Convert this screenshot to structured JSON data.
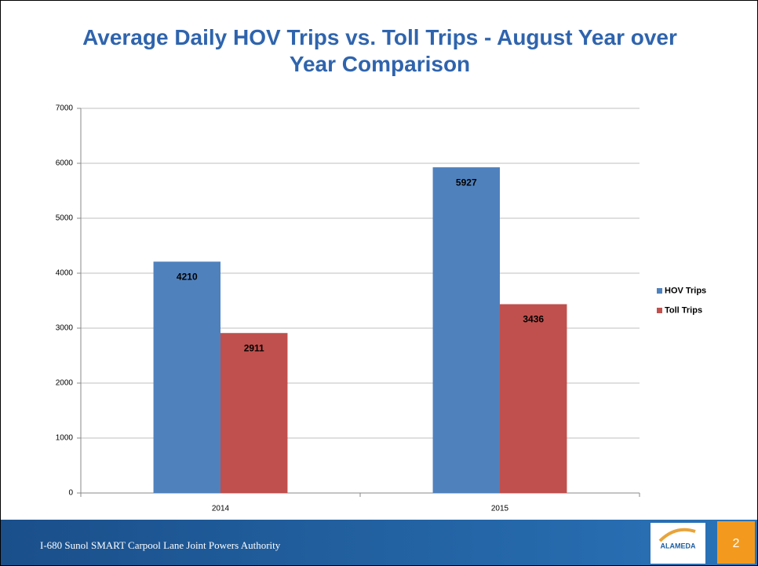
{
  "chart_data": {
    "type": "bar",
    "title": "Average Daily HOV Trips vs. Toll Trips - August Year over Year Comparison",
    "categories": [
      "2014",
      "2015"
    ],
    "series": [
      {
        "name": "HOV Trips",
        "color": "#4f81bd",
        "values": [
          4210,
          5927
        ]
      },
      {
        "name": "Toll Trips",
        "color": "#c0504d",
        "values": [
          2911,
          3436
        ]
      }
    ],
    "ylim": [
      0,
      7000
    ],
    "yticks": [
      0,
      1000,
      2000,
      3000,
      4000,
      5000,
      6000,
      7000
    ],
    "grid": true,
    "legend": "right"
  },
  "footer": {
    "text": "I-680 Sunol SMART Carpool Lane Joint Powers Authority",
    "page": "2",
    "logo": "ALAMEDA"
  }
}
